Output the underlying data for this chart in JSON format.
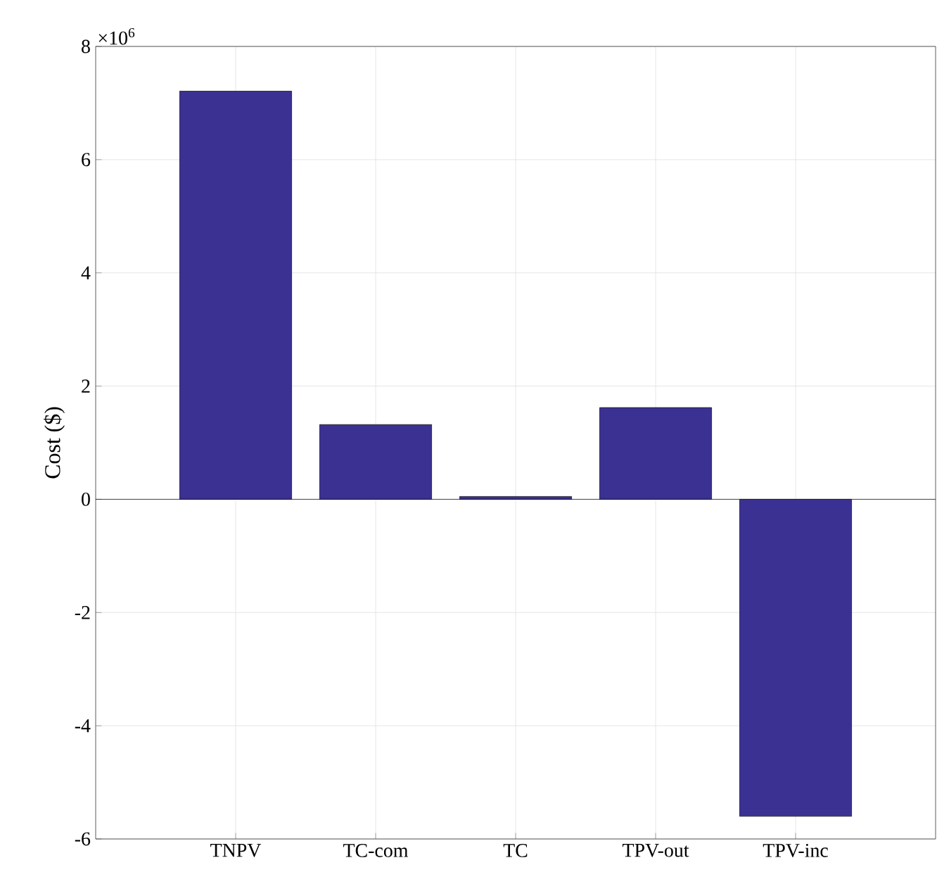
{
  "chart_data": {
    "type": "bar",
    "ylabel": "Cost ($)",
    "categories": [
      "TNPV",
      "TC-com",
      "TC",
      "TPV-out",
      "TPV-inc"
    ],
    "values": [
      7.21,
      1.32,
      0.05,
      1.62,
      -5.6
    ],
    "color": "#3b3192",
    "ylim": [
      -6,
      8
    ],
    "yticks": [
      -6,
      -4,
      -2,
      0,
      2,
      4,
      6,
      8
    ],
    "grid": true,
    "annotations": [
      "×10$^{6}$"
    ]
  }
}
